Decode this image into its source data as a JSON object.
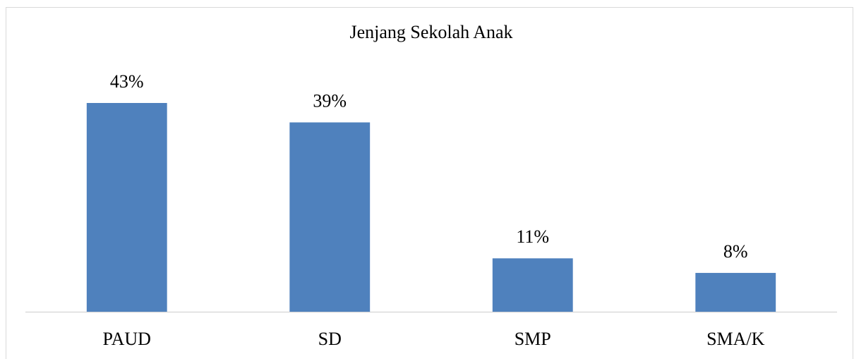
{
  "chart_data": {
    "type": "bar",
    "title": "Jenjang Sekolah Anak",
    "categories": [
      "PAUD",
      "SD",
      "SMP",
      "SMA/K"
    ],
    "values": [
      43,
      39,
      11,
      8
    ],
    "value_labels": [
      "43%",
      "39%",
      "11%",
      "8%"
    ],
    "color": "#4f81bd"
  }
}
